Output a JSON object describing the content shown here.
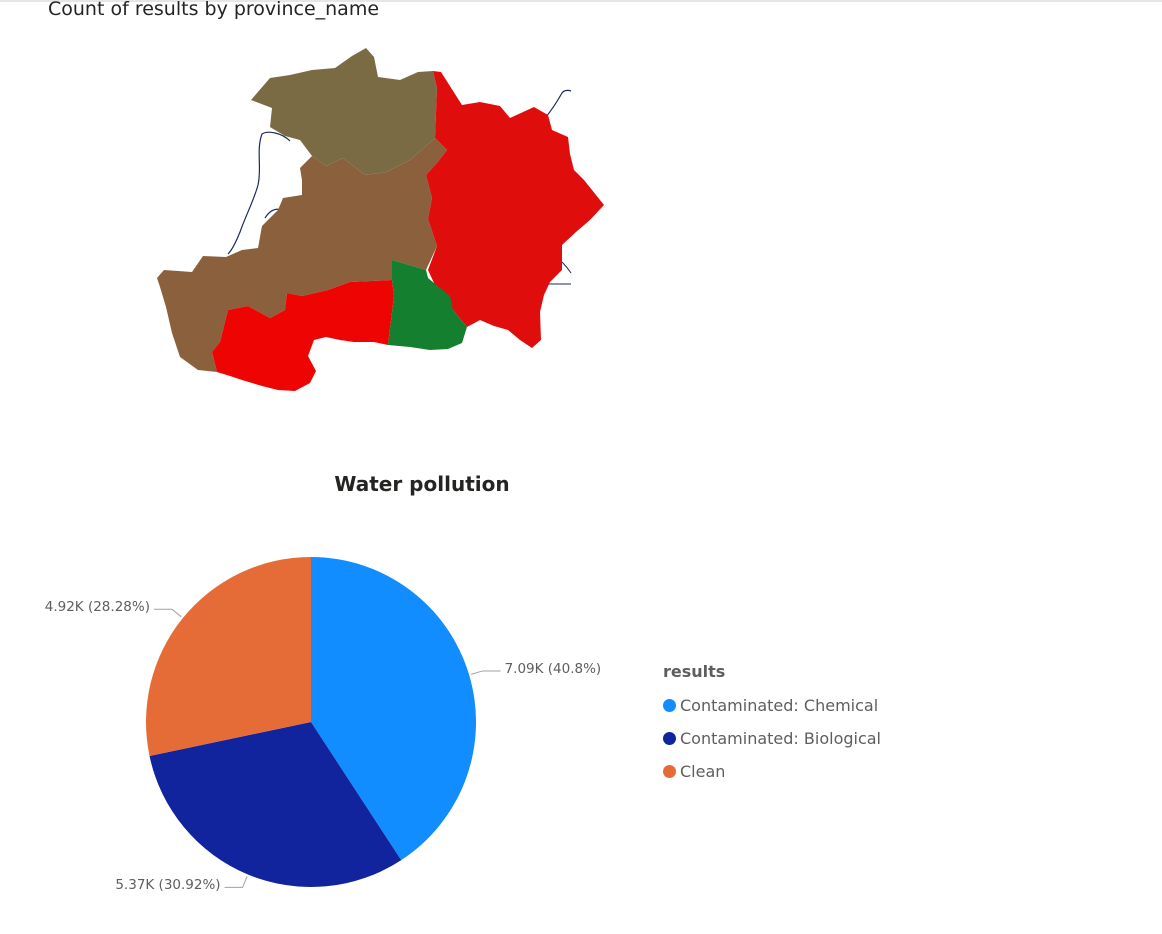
{
  "map": {
    "title": "Count of results by province_name",
    "regions": [
      {
        "id": "north",
        "color": "#7b6b45"
      },
      {
        "id": "central",
        "color": "#8b603d"
      },
      {
        "id": "east",
        "color": "#e00d0d"
      },
      {
        "id": "south-west",
        "color": "#ef0404"
      },
      {
        "id": "south-central",
        "color": "#147f2e"
      }
    ]
  },
  "chart_data": {
    "type": "pie",
    "title": "Water pollution",
    "legend_title": "results",
    "legend_position": "right",
    "slices": [
      {
        "name": "Contaminated: Chemical",
        "value": 7090,
        "percent": 40.8,
        "label": "7.09K (40.8%)",
        "color": "#118dff"
      },
      {
        "name": "Contaminated: Biological",
        "value": 5370,
        "percent": 30.92,
        "label": "5.37K (30.92%)",
        "color": "#12239e"
      },
      {
        "name": "Clean",
        "value": 4920,
        "percent": 28.28,
        "label": "4.92K (28.28%)",
        "color": "#e66c37"
      }
    ]
  }
}
